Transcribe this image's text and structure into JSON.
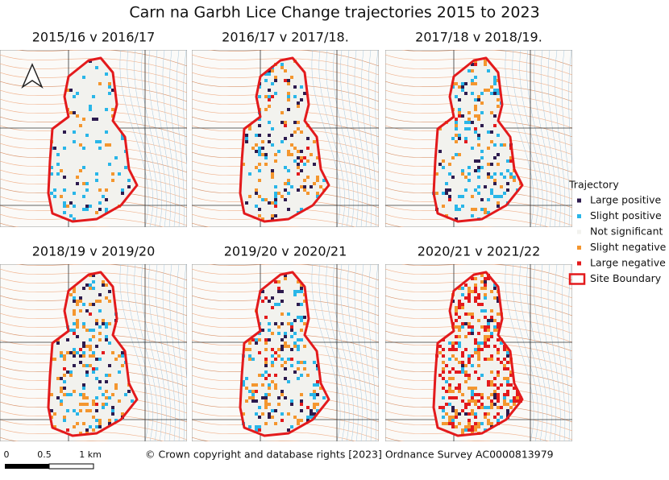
{
  "title": "Carn na Garbh Lice Change trajectories 2015 to 2023",
  "panels": [
    {
      "title": "2015/16 v 2016/17"
    },
    {
      "title": "2016/17 v 2017/18."
    },
    {
      "title": "2017/18 v 2018/19."
    },
    {
      "title": "2018/19 v 2019/20"
    },
    {
      "title": "2019/20 v 2020/21"
    },
    {
      "title": "2020/21 v 2021/22"
    }
  ],
  "legend": {
    "title": "Trajectory",
    "items": [
      {
        "label": "Large positive",
        "color": "#2d1b4e"
      },
      {
        "label": "Slight positive",
        "color": "#29b6e8"
      },
      {
        "label": "Not significant",
        "color": "#f2f2ee"
      },
      {
        "label": "Slight negative",
        "color": "#f4962e"
      },
      {
        "label": "Large negative",
        "color": "#e31a1c"
      },
      {
        "label": "Site Boundary",
        "color": "#e31a1c"
      }
    ]
  },
  "scale_bar": {
    "labels": [
      "0",
      "0.5",
      "1 km"
    ]
  },
  "copyright": "© Crown copyright and database rights [2023] Ordnance Survey AC0000813979"
}
